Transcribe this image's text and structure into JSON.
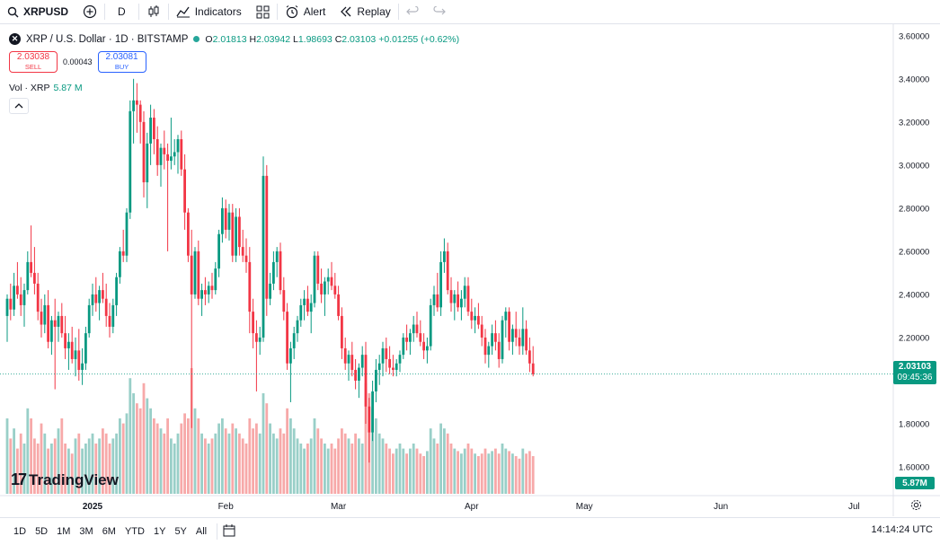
{
  "toolbar": {
    "symbol": "XRPUSD",
    "interval": "D",
    "indicators_label": "Indicators",
    "alert_label": "Alert",
    "replay_label": "Replay",
    "icons": [
      "search-icon",
      "add-symbol-icon",
      "candle-type-icon",
      "indicators-icon",
      "layouts-icon",
      "alert-icon",
      "replay-icon",
      "undo-icon",
      "redo-icon"
    ]
  },
  "legend": {
    "title": "XRP / U.S. Dollar · 1D · BITSTAMP",
    "o_label": "O",
    "o": "2.01813",
    "h_label": "H",
    "h": "2.03942",
    "l_label": "L",
    "l": "1.98693",
    "c_label": "C",
    "c": "2.03103",
    "change": "+0.01255 (+0.62%)",
    "sell_price": "2.03038",
    "sell_label": "SELL",
    "spread": "0.00043",
    "buy_price": "2.03081",
    "buy_label": "BUY",
    "vol_label": "Vol · XRP",
    "vol_value": "5.87 M",
    "collapse_icon": "chevron-up-icon"
  },
  "last_price": {
    "value": "2.03103",
    "countdown": "09:45:36"
  },
  "volume_last": "5.87M",
  "watermark": "TradingView",
  "bottom": {
    "ranges": [
      "1D",
      "5D",
      "1M",
      "3M",
      "6M",
      "YTD",
      "1Y",
      "5Y",
      "All"
    ],
    "time": "14:14:24 UTC"
  },
  "colors": {
    "up": "#089981",
    "down": "#f23645",
    "up_vol": "#99cfc8",
    "down_vol": "#f7a9a9"
  },
  "chart_data": {
    "type": "candlestick",
    "y_ticks": [
      "3.60000",
      "3.40000",
      "3.20000",
      "3.00000",
      "2.80000",
      "2.60000",
      "2.40000",
      "2.20000",
      "2.00000",
      "1.80000",
      "1.60000"
    ],
    "ylim": [
      1.55,
      3.62
    ],
    "x_ticks": [
      "2025",
      "Feb",
      "Mar",
      "Apr",
      "May",
      "Jun",
      "Jul"
    ],
    "x_tick_index": [
      25,
      64,
      97,
      136,
      169,
      209,
      248
    ],
    "start_index": 0,
    "ohlc": [
      [
        2.3,
        2.4,
        2.18,
        2.38
      ],
      [
        2.38,
        2.45,
        2.28,
        2.33
      ],
      [
        2.33,
        2.5,
        2.3,
        2.44
      ],
      [
        2.44,
        2.55,
        2.38,
        2.4
      ],
      [
        2.4,
        2.48,
        2.3,
        2.35
      ],
      [
        2.35,
        2.45,
        2.25,
        2.42
      ],
      [
        2.42,
        2.6,
        2.4,
        2.55
      ],
      [
        2.55,
        2.72,
        2.48,
        2.5
      ],
      [
        2.5,
        2.62,
        2.4,
        2.45
      ],
      [
        2.45,
        2.5,
        2.28,
        2.32
      ],
      [
        2.32,
        2.38,
        2.2,
        2.26
      ],
      [
        2.26,
        2.4,
        2.22,
        2.35
      ],
      [
        2.35,
        2.42,
        2.15,
        2.18
      ],
      [
        2.18,
        2.3,
        2.12,
        2.28
      ],
      [
        2.28,
        2.38,
        1.96,
        2.25
      ],
      [
        2.25,
        2.32,
        2.18,
        2.3
      ],
      [
        2.3,
        2.36,
        2.2,
        2.22
      ],
      [
        2.22,
        2.3,
        2.1,
        2.15
      ],
      [
        2.15,
        2.22,
        2.05,
        2.18
      ],
      [
        2.18,
        2.25,
        2.08,
        2.1
      ],
      [
        2.1,
        2.2,
        2.02,
        2.14
      ],
      [
        2.14,
        2.24,
        2.0,
        2.05
      ],
      [
        2.05,
        2.15,
        1.98,
        2.08
      ],
      [
        2.08,
        2.25,
        2.05,
        2.22
      ],
      [
        2.22,
        2.38,
        2.2,
        2.35
      ],
      [
        2.35,
        2.45,
        2.3,
        2.4
      ],
      [
        2.4,
        2.48,
        2.32,
        2.36
      ],
      [
        2.36,
        2.44,
        2.28,
        2.42
      ],
      [
        2.42,
        2.5,
        2.36,
        2.38
      ],
      [
        2.38,
        2.45,
        2.25,
        2.3
      ],
      [
        2.3,
        2.36,
        2.2,
        2.25
      ],
      [
        2.25,
        2.38,
        2.22,
        2.35
      ],
      [
        2.35,
        2.5,
        2.3,
        2.48
      ],
      [
        2.48,
        2.62,
        2.45,
        2.6
      ],
      [
        2.6,
        2.7,
        2.55,
        2.58
      ],
      [
        2.58,
        2.8,
        2.55,
        2.78
      ],
      [
        2.78,
        3.3,
        2.75,
        3.25
      ],
      [
        3.25,
        3.4,
        3.1,
        3.3
      ],
      [
        3.3,
        3.38,
        3.15,
        3.28
      ],
      [
        3.28,
        3.3,
        3.1,
        3.2
      ],
      [
        3.2,
        3.25,
        2.85,
        2.92
      ],
      [
        2.92,
        3.15,
        2.8,
        3.1
      ],
      [
        3.1,
        3.28,
        3.0,
        3.22
      ],
      [
        3.22,
        3.26,
        3.05,
        3.12
      ],
      [
        3.12,
        3.18,
        2.95,
        3.0
      ],
      [
        3.0,
        3.1,
        2.9,
        3.08
      ],
      [
        3.08,
        3.16,
        2.98,
        3.05
      ],
      [
        3.05,
        3.1,
        2.6,
        3.02
      ],
      [
        3.02,
        3.22,
        2.98,
        3.04
      ],
      [
        3.04,
        3.12,
        3.0,
        3.06
      ],
      [
        3.06,
        3.14,
        2.96,
        3.12
      ],
      [
        3.12,
        3.16,
        2.95,
        2.98
      ],
      [
        2.98,
        3.05,
        2.7,
        2.78
      ],
      [
        2.78,
        2.8,
        2.55,
        2.58
      ],
      [
        2.58,
        2.7,
        1.78,
        2.4
      ],
      [
        2.4,
        2.62,
        2.38,
        2.6
      ],
      [
        2.6,
        2.65,
        2.35,
        2.38
      ],
      [
        2.38,
        2.45,
        2.3,
        2.42
      ],
      [
        2.42,
        2.48,
        2.35,
        2.4
      ],
      [
        2.4,
        2.46,
        2.36,
        2.44
      ],
      [
        2.44,
        2.5,
        2.38,
        2.42
      ],
      [
        2.42,
        2.55,
        2.4,
        2.52
      ],
      [
        2.52,
        2.7,
        2.48,
        2.68
      ],
      [
        2.68,
        2.85,
        2.64,
        2.8
      ],
      [
        2.8,
        2.84,
        2.66,
        2.7
      ],
      [
        2.7,
        2.82,
        2.65,
        2.78
      ],
      [
        2.78,
        2.82,
        2.55,
        2.58
      ],
      [
        2.58,
        2.8,
        2.55,
        2.76
      ],
      [
        2.76,
        2.8,
        2.58,
        2.62
      ],
      [
        2.62,
        2.7,
        2.55,
        2.58
      ],
      [
        2.58,
        2.66,
        2.5,
        2.55
      ],
      [
        2.55,
        2.62,
        2.22,
        2.32
      ],
      [
        2.32,
        2.38,
        2.15,
        2.22
      ],
      [
        2.22,
        2.28,
        1.95,
        2.18
      ],
      [
        2.18,
        2.25,
        2.12,
        2.2
      ],
      [
        2.2,
        3.04,
        2.18,
        2.95
      ],
      [
        2.95,
        3.0,
        2.3,
        2.38
      ],
      [
        2.38,
        2.5,
        2.35,
        2.45
      ],
      [
        2.45,
        2.6,
        2.42,
        2.55
      ],
      [
        2.55,
        2.62,
        2.48,
        2.6
      ],
      [
        2.6,
        2.64,
        2.4,
        2.42
      ],
      [
        2.42,
        2.48,
        2.28,
        2.32
      ],
      [
        2.32,
        2.36,
        2.05,
        2.08
      ],
      [
        2.08,
        2.18,
        1.9,
        2.15
      ],
      [
        2.15,
        2.25,
        2.1,
        2.22
      ],
      [
        2.22,
        2.3,
        2.18,
        2.28
      ],
      [
        2.28,
        2.38,
        2.25,
        2.35
      ],
      [
        2.35,
        2.42,
        2.28,
        2.38
      ],
      [
        2.38,
        2.44,
        2.3,
        2.32
      ],
      [
        2.32,
        2.4,
        2.22,
        2.36
      ],
      [
        2.36,
        2.6,
        2.34,
        2.58
      ],
      [
        2.58,
        2.6,
        2.42,
        2.45
      ],
      [
        2.45,
        2.52,
        2.36,
        2.4
      ],
      [
        2.4,
        2.48,
        2.3,
        2.46
      ],
      [
        2.46,
        2.52,
        2.4,
        2.48
      ],
      [
        2.48,
        2.55,
        2.42,
        2.44
      ],
      [
        2.44,
        2.5,
        2.38,
        2.4
      ],
      [
        2.4,
        2.44,
        2.28,
        2.3
      ],
      [
        2.3,
        2.34,
        2.1,
        2.15
      ],
      [
        2.15,
        2.2,
        2.05,
        2.08
      ],
      [
        2.08,
        2.14,
        2.0,
        2.12
      ],
      [
        2.12,
        2.18,
        2.02,
        2.05
      ],
      [
        2.05,
        2.1,
        1.96,
        2.0
      ],
      [
        2.0,
        2.08,
        1.92,
        2.06
      ],
      [
        2.06,
        2.16,
        2.02,
        2.12
      ],
      [
        2.12,
        2.18,
        1.8,
        1.88
      ],
      [
        1.88,
        1.92,
        1.62,
        1.76
      ],
      [
        1.76,
        2.0,
        1.72,
        1.95
      ],
      [
        1.95,
        2.1,
        1.9,
        2.05
      ],
      [
        2.05,
        2.12,
        1.98,
        2.08
      ],
      [
        2.08,
        2.18,
        2.02,
        2.15
      ],
      [
        2.15,
        2.2,
        2.04,
        2.1
      ],
      [
        2.1,
        2.16,
        2.03,
        2.06
      ],
      [
        2.06,
        2.12,
        2.02,
        2.05
      ],
      [
        2.05,
        2.1,
        2.02,
        2.08
      ],
      [
        2.08,
        2.14,
        2.04,
        2.12
      ],
      [
        2.12,
        2.22,
        2.1,
        2.2
      ],
      [
        2.2,
        2.26,
        2.14,
        2.18
      ],
      [
        2.18,
        2.24,
        2.12,
        2.22
      ],
      [
        2.22,
        2.3,
        2.18,
        2.26
      ],
      [
        2.26,
        2.32,
        2.2,
        2.22
      ],
      [
        2.22,
        2.28,
        2.16,
        2.18
      ],
      [
        2.18,
        2.22,
        2.1,
        2.14
      ],
      [
        2.14,
        2.2,
        2.08,
        2.16
      ],
      [
        2.16,
        2.38,
        2.14,
        2.35
      ],
      [
        2.35,
        2.44,
        2.3,
        2.4
      ],
      [
        2.4,
        2.5,
        2.32,
        2.34
      ],
      [
        2.34,
        2.6,
        2.3,
        2.55
      ],
      [
        2.55,
        2.66,
        2.5,
        2.6
      ],
      [
        2.6,
        2.64,
        2.4,
        2.42
      ],
      [
        2.42,
        2.48,
        2.32,
        2.36
      ],
      [
        2.36,
        2.42,
        2.28,
        2.4
      ],
      [
        2.4,
        2.46,
        2.32,
        2.34
      ],
      [
        2.34,
        2.42,
        2.28,
        2.38
      ],
      [
        2.38,
        2.48,
        2.34,
        2.44
      ],
      [
        2.44,
        2.48,
        2.3,
        2.32
      ],
      [
        2.32,
        2.38,
        2.24,
        2.28
      ],
      [
        2.28,
        2.34,
        2.22,
        2.3
      ],
      [
        2.3,
        2.36,
        2.24,
        2.26
      ],
      [
        2.26,
        2.3,
        2.16,
        2.2
      ],
      [
        2.2,
        2.24,
        2.08,
        2.12
      ],
      [
        2.12,
        2.18,
        2.06,
        2.16
      ],
      [
        2.16,
        2.26,
        2.12,
        2.22
      ],
      [
        2.22,
        2.28,
        2.14,
        2.18
      ],
      [
        2.18,
        2.22,
        2.06,
        2.1
      ],
      [
        2.1,
        2.3,
        2.08,
        2.28
      ],
      [
        2.28,
        2.34,
        2.2,
        2.32
      ],
      [
        2.32,
        2.34,
        2.14,
        2.18
      ],
      [
        2.18,
        2.26,
        2.12,
        2.24
      ],
      [
        2.24,
        2.32,
        2.16,
        2.2
      ],
      [
        2.2,
        2.24,
        2.12,
        2.16
      ],
      [
        2.16,
        2.34,
        2.12,
        2.24
      ],
      [
        2.24,
        2.28,
        2.12,
        2.14
      ],
      [
        2.14,
        2.2,
        2.04,
        2.08
      ],
      [
        2.08,
        2.16,
        2.02,
        2.03
      ]
    ],
    "volume": [
      0.3,
      0.22,
      0.26,
      0.18,
      0.24,
      0.2,
      0.34,
      0.3,
      0.22,
      0.2,
      0.28,
      0.24,
      0.18,
      0.2,
      0.22,
      0.26,
      0.3,
      0.2,
      0.18,
      0.16,
      0.22,
      0.24,
      0.18,
      0.2,
      0.22,
      0.24,
      0.2,
      0.22,
      0.26,
      0.24,
      0.2,
      0.22,
      0.24,
      0.3,
      0.28,
      0.32,
      0.46,
      0.4,
      0.36,
      0.34,
      0.44,
      0.38,
      0.34,
      0.3,
      0.28,
      0.26,
      0.24,
      0.3,
      0.22,
      0.2,
      0.24,
      0.28,
      0.32,
      0.3,
      0.5,
      0.34,
      0.3,
      0.24,
      0.22,
      0.2,
      0.22,
      0.24,
      0.28,
      0.3,
      0.26,
      0.24,
      0.28,
      0.26,
      0.24,
      0.22,
      0.2,
      0.3,
      0.26,
      0.28,
      0.24,
      0.4,
      0.36,
      0.28,
      0.24,
      0.22,
      0.26,
      0.24,
      0.34,
      0.3,
      0.26,
      0.22,
      0.2,
      0.18,
      0.2,
      0.22,
      0.3,
      0.26,
      0.22,
      0.2,
      0.18,
      0.2,
      0.18,
      0.22,
      0.26,
      0.24,
      0.22,
      0.2,
      0.24,
      0.22,
      0.2,
      0.44,
      0.4,
      0.34,
      0.3,
      0.24,
      0.22,
      0.2,
      0.18,
      0.16,
      0.18,
      0.2,
      0.18,
      0.16,
      0.18,
      0.2,
      0.18,
      0.16,
      0.15,
      0.17,
      0.26,
      0.22,
      0.2,
      0.28,
      0.26,
      0.24,
      0.2,
      0.18,
      0.17,
      0.16,
      0.18,
      0.2,
      0.18,
      0.16,
      0.15,
      0.16,
      0.18,
      0.16,
      0.17,
      0.18,
      0.16,
      0.2,
      0.18,
      0.17,
      0.16,
      0.15,
      0.14,
      0.18,
      0.16,
      0.17,
      0.15
    ]
  }
}
